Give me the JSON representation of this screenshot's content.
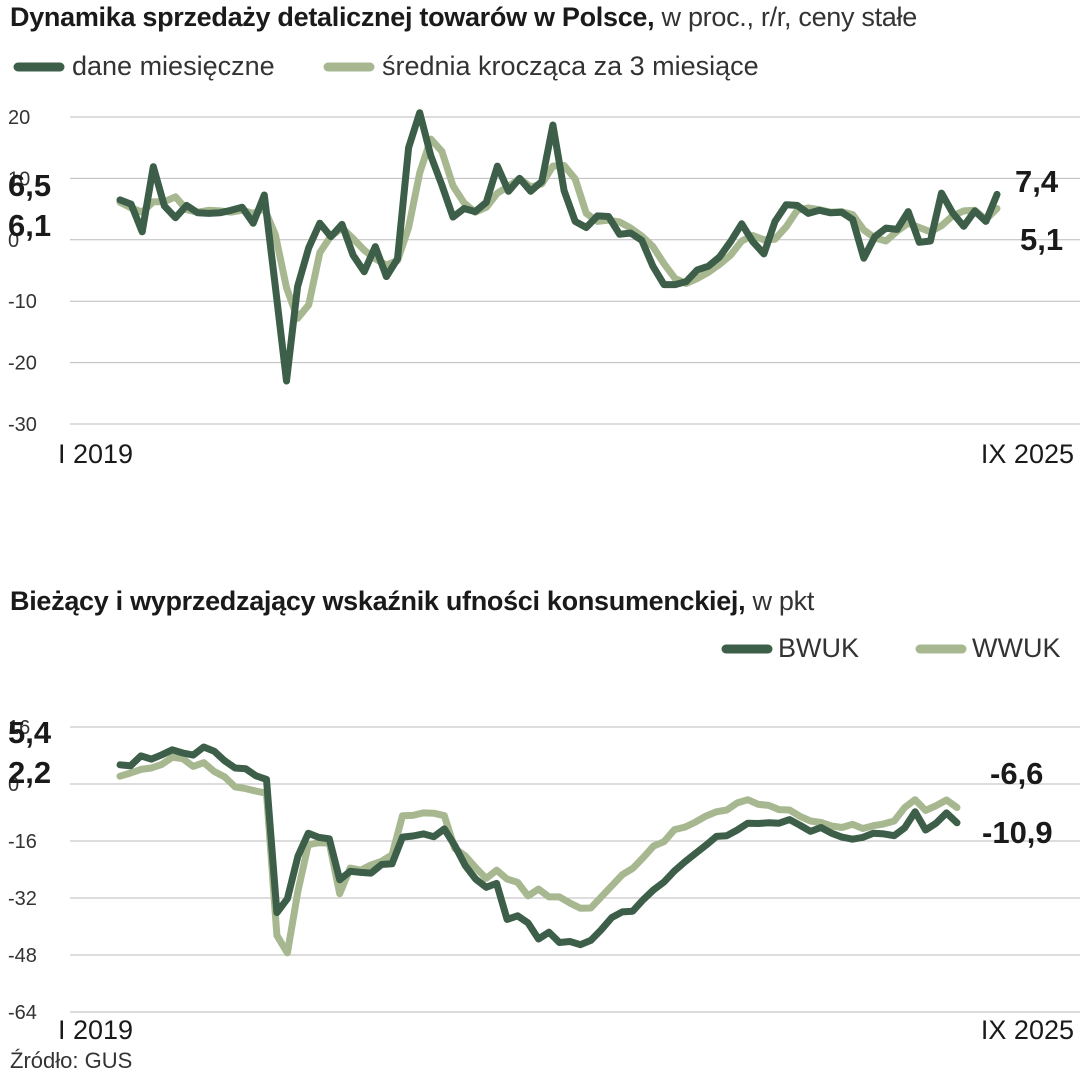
{
  "colors": {
    "dark": "#3d5e48",
    "light": "#a7b891",
    "grid": "#bbbbbb"
  },
  "source": "Źródło:  GUS",
  "chart_data": [
    {
      "type": "line",
      "title": "Dynamika sprzedaży detalicznej towarów w Polsce,",
      "subtitle": "w proc., r/r, ceny stałe",
      "xlabel_start": "I 2019",
      "xlabel_end": "IX 2025",
      "ylim": [
        -30,
        20
      ],
      "yticks": [
        20,
        10,
        0,
        -10,
        -20,
        -30
      ],
      "legend_position": "top-left",
      "series": [
        {
          "name": "dane miesięczne",
          "values": [
            6.5,
            5.8,
            1.3,
            11.9,
            5.5,
            3.6,
            5.6,
            4.4,
            4.3,
            4.4,
            4.8,
            5.3,
            2.7,
            7.3,
            -7.7,
            -23.0,
            -7.6,
            -1.3,
            2.7,
            0.5,
            2.5,
            -2.5,
            -5.2,
            -1.1,
            -6.0,
            -3.1,
            15.0,
            20.7,
            13.7,
            8.9,
            3.7,
            5.1,
            4.6,
            6.1,
            12.0,
            7.9,
            10.0,
            7.9,
            9.5,
            18.7,
            8.0,
            3.0,
            2.0,
            3.9,
            3.8,
            0.9,
            1.1,
            -0.1,
            -4.3,
            -7.3,
            -7.3,
            -6.8,
            -4.9,
            -4.3,
            -2.8,
            -0.3,
            2.6,
            -0.3,
            -2.3,
            3.0,
            5.7,
            5.6,
            4.3,
            4.8,
            4.4,
            4.5,
            3.3,
            -3.0,
            0.5,
            1.9,
            1.7,
            4.6,
            -0.4,
            -0.2,
            7.6,
            4.4,
            2.2,
            4.7,
            3.0,
            7.4
          ],
          "end_label": "7,4",
          "start_label": "6,5"
        },
        {
          "name": "średnia krocząca za 3 miesiące",
          "values": [
            6.1,
            5.2,
            4.5,
            6.2,
            6.2,
            7.0,
            4.9,
            4.5,
            4.8,
            4.7,
            4.5,
            4.8,
            4.3,
            5.1,
            0.8,
            -7.8,
            -12.8,
            -10.6,
            -2.1,
            0.6,
            1.9,
            0.2,
            -1.7,
            -3.1,
            -4.1,
            -3.4,
            2.0,
            10.9,
            16.4,
            14.4,
            8.8,
            6.0,
            4.5,
            5.3,
            7.6,
            8.7,
            10.0,
            8.6,
            9.1,
            12.0,
            12.1,
            9.9,
            4.3,
            3.0,
            3.2,
            2.9,
            1.9,
            0.6,
            -1.1,
            -3.9,
            -6.3,
            -7.1,
            -6.3,
            -5.3,
            -4.0,
            -2.5,
            -0.2,
            0.7,
            0.0,
            0.1,
            2.1,
            4.8,
            5.2,
            4.9,
            4.5,
            4.6,
            4.1,
            1.6,
            0.3,
            -0.2,
            1.4,
            2.7,
            2.0,
            1.3,
            2.3,
            3.9,
            4.7,
            4.8,
            3.3,
            5.1
          ],
          "end_label": "5,1",
          "start_label": "6,1"
        }
      ]
    },
    {
      "type": "line",
      "title": "Bieżący i wyprzedzający wskaźnik ufności konsumenckiej,",
      "subtitle": "w pkt",
      "xlabel_start": "I 2019",
      "xlabel_end": "IX 2025",
      "ylim": [
        -64,
        16
      ],
      "yticks": [
        16,
        0,
        -16,
        -32,
        -48,
        -64
      ],
      "legend_position": "top-right",
      "series": [
        {
          "name": "BWUK",
          "values": [
            5.4,
            5.1,
            7.9,
            7.0,
            8.2,
            9.6,
            8.7,
            8.1,
            10.4,
            9.2,
            6.5,
            4.5,
            4.3,
            2.3,
            1.3,
            -36.1,
            -32.2,
            -20.3,
            -13.8,
            -15.0,
            -15.4,
            -26.9,
            -24.5,
            -24.8,
            -25.0,
            -22.6,
            -22.4,
            -14.9,
            -14.6,
            -14.0,
            -14.8,
            -12.6,
            -17.3,
            -22.9,
            -26.7,
            -29.0,
            -27.9,
            -38.0,
            -37.0,
            -39.0,
            -43.5,
            -41.6,
            -44.5,
            -44.2,
            -45.1,
            -43.9,
            -40.9,
            -37.5,
            -35.9,
            -35.7,
            -32.5,
            -29.7,
            -27.5,
            -24.4,
            -21.8,
            -19.5,
            -17.2,
            -14.7,
            -14.5,
            -12.9,
            -11.0,
            -11.1,
            -10.9,
            -11.0,
            -10.0,
            -11.6,
            -13.3,
            -12.2,
            -13.8,
            -14.9,
            -15.5,
            -15.0,
            -13.8,
            -14.0,
            -14.5,
            -12.3,
            -7.8,
            -12.9,
            -11.0,
            -8.1,
            -10.9
          ],
          "end_label": "-10,9",
          "start_label": "5,4"
        },
        {
          "name": "WWUK",
          "values": [
            2.2,
            3.1,
            4.1,
            4.5,
            5.5,
            7.5,
            7.1,
            4.9,
            6.0,
            3.5,
            2.0,
            -0.8,
            -1.3,
            -2.0,
            -2.6,
            -42.5,
            -47.4,
            -30.1,
            -17.0,
            -16.5,
            -16.6,
            -30.8,
            -23.6,
            -24.2,
            -22.7,
            -21.7,
            -19.9,
            -8.9,
            -8.8,
            -8.1,
            -8.2,
            -8.9,
            -18.1,
            -20.2,
            -23.5,
            -26.5,
            -24.2,
            -26.7,
            -27.6,
            -31.4,
            -29.5,
            -31.7,
            -31.7,
            -33.4,
            -34.9,
            -34.8,
            -31.7,
            -28.6,
            -25.5,
            -23.7,
            -20.7,
            -17.4,
            -16.2,
            -12.8,
            -12.1,
            -10.7,
            -9.0,
            -7.8,
            -7.3,
            -5.3,
            -4.4,
            -5.7,
            -6.0,
            -7.2,
            -7.3,
            -9.1,
            -10.4,
            -10.8,
            -11.8,
            -12.2,
            -11.3,
            -12.5,
            -11.7,
            -11.2,
            -10.4,
            -6.6,
            -4.4,
            -7.4,
            -6.1,
            -4.5,
            -6.6
          ],
          "end_label": "-6,6",
          "start_label": "2,2"
        }
      ]
    }
  ]
}
